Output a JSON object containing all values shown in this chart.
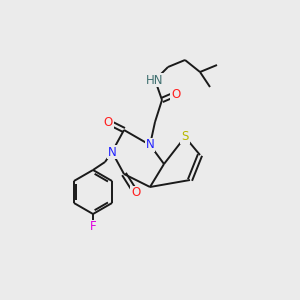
{
  "background_color": "#ebebeb",
  "bond_color": "#1a1a1a",
  "atom_colors": {
    "N": "#2020ff",
    "O": "#ff2020",
    "S": "#b8b800",
    "F": "#e000e0",
    "H": "#407070",
    "C": "#1a1a1a"
  },
  "figsize": [
    3.0,
    3.0
  ],
  "dpi": 100
}
